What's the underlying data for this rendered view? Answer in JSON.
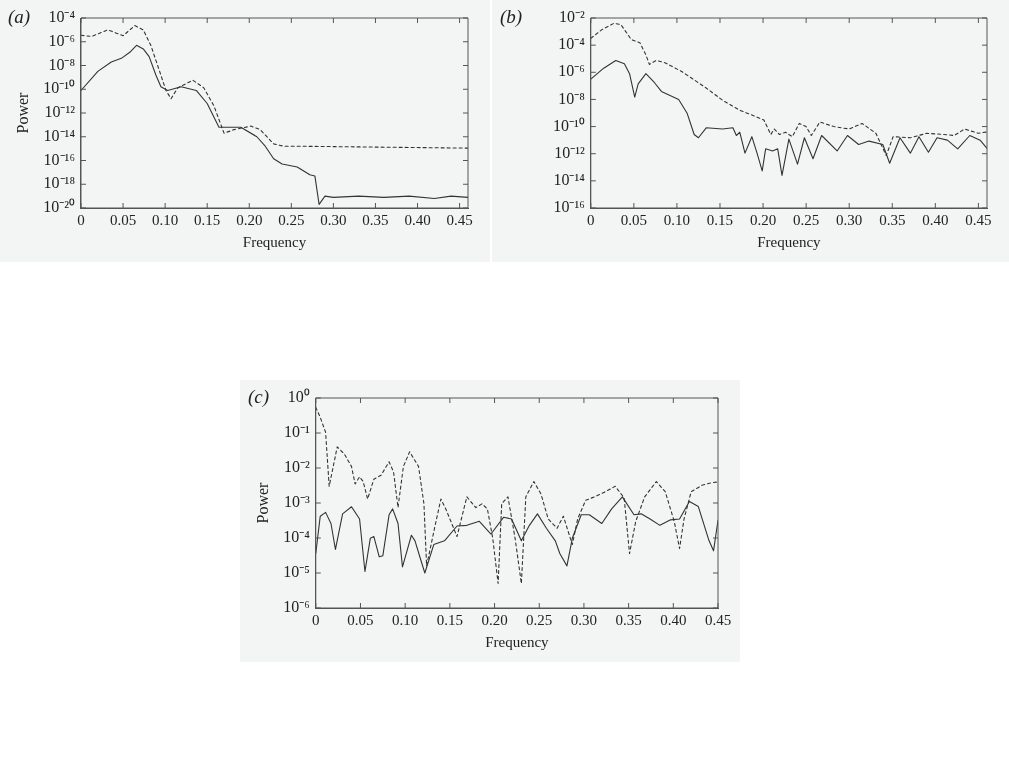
{
  "chart_data": [
    {
      "type": "line",
      "title": "(a)",
      "xlabel": "Frequency",
      "ylabel": "Power",
      "log": true,
      "xlim": [
        0,
        0.46
      ],
      "xticks": [
        0,
        0.05,
        {
          "value": 0.1,
          "label": "0.10"
        },
        0.15,
        {
          "value": 0.2,
          "label": "0.20"
        },
        0.25,
        {
          "value": 0.3,
          "label": "0.30"
        },
        0.35,
        {
          "value": 0.4,
          "label": "0.40"
        },
        0.45
      ],
      "ylim": [
        1e-20,
        0.0001
      ],
      "yticks": [
        {
          "value": 1e-20,
          "label": "10⁻²⁰"
        },
        {
          "value": 1e-18,
          "label": "10⁻¹⁸"
        },
        {
          "value": 1e-16,
          "label": "10⁻¹⁶"
        },
        {
          "value": 1e-14,
          "label": "10⁻¹⁴"
        },
        {
          "value": 1e-12,
          "label": "10⁻¹²"
        },
        {
          "value": 1e-10,
          "label": "10⁻¹⁰"
        },
        {
          "value": 1e-08,
          "label": "10⁻⁸"
        },
        {
          "value": 1e-06,
          "label": "10⁻⁶"
        },
        {
          "value": 0.0001,
          "label": "10⁻⁴"
        }
      ],
      "marker": "none",
      "series": [
        {
          "color": "#333333",
          "line_style": "solid",
          "x": [
            0,
            0.02,
            0.036,
            0.048,
            0.058,
            0.066,
            0.074,
            0.081,
            0.089,
            0.095,
            0.103,
            0.119,
            0.137,
            0.15,
            0.164,
            0.19,
            0.209,
            0.219,
            0.229,
            0.239,
            0.257,
            0.272,
            0.278,
            0.283,
            0.29,
            0.3,
            0.33,
            0.36,
            0.39,
            0.42,
            0.44,
            0.46
          ],
          "values": [
            7.9e-11,
            3.2e-09,
            2e-08,
            4e-08,
            1.3e-07,
            5e-07,
            2.5e-07,
            5.6e-08,
            1.6e-09,
            1.6e-10,
            7.9e-11,
            1.6e-10,
            7.9e-11,
            6.3e-12,
            6.3e-14,
            6.3e-14,
            1e-14,
            1.6e-15,
            1.4e-16,
            5e-17,
            2.8e-17,
            6.3e-18,
            5e-18,
            2e-20,
            1e-19,
            7.9e-20,
            1e-19,
            7.9e-20,
            1e-19,
            6.3e-20,
            1e-19,
            7.9e-20
          ]
        },
        {
          "color": "#333333",
          "line_style": "dashed",
          "x": [
            0,
            0.0126,
            0.032,
            0.05,
            0.064,
            0.074,
            0.083,
            0.093,
            0.101,
            0.107,
            0.115,
            0.133,
            0.146,
            0.158,
            0.17,
            0.182,
            0.202,
            0.213,
            0.229,
            0.241,
            0.257,
            0.46
          ],
          "values": [
            3.5e-06,
            2.8e-06,
            1e-05,
            3.2e-06,
            2.3e-05,
            1e-05,
            5e-07,
            4e-09,
            7.9e-11,
            1.6e-11,
            1.3e-10,
            5.8e-10,
            1.3e-10,
            4e-12,
            2e-14,
            4e-14,
            7.9e-14,
            4e-14,
            2.5e-15,
            1.6e-15,
            1.6e-15,
            1.1e-15
          ]
        }
      ]
    },
    {
      "type": "line",
      "title": "(b)",
      "xlabel": "Frequency",
      "log": true,
      "xlim": [
        0,
        0.46
      ],
      "xticks": [
        0,
        0.05,
        {
          "value": 0.1,
          "label": "0.10"
        },
        0.15,
        {
          "value": 0.2,
          "label": "0.20"
        },
        0.25,
        {
          "value": 0.3,
          "label": "0.30"
        },
        0.35,
        {
          "value": 0.4,
          "label": "0.40"
        },
        0.45
      ],
      "ylim": [
        1e-16,
        0.01
      ],
      "yticks": [
        {
          "value": 1e-16,
          "label": "10⁻¹⁶"
        },
        {
          "value": 1e-14,
          "label": "10⁻¹⁴"
        },
        {
          "value": 1e-12,
          "label": "10⁻¹²"
        },
        {
          "value": 1e-10,
          "label": "10⁻¹⁰"
        },
        {
          "value": 1e-08,
          "label": "10⁻⁸"
        },
        {
          "value": 1e-06,
          "label": "10⁻⁶"
        },
        {
          "value": 0.0001,
          "label": "10⁻⁴"
        },
        {
          "value": 0.01,
          "label": "10⁻²"
        }
      ],
      "marker": "none",
      "series": [
        {
          "color": "#333333",
          "line_style": "solid",
          "x": [
            0,
            0.015,
            0.029,
            0.039,
            0.045,
            0.051,
            0.055,
            0.064,
            0.074,
            0.082,
            0.102,
            0.112,
            0.12,
            0.125,
            0.134,
            0.153,
            0.165,
            0.169,
            0.173,
            0.179,
            0.187,
            0.193,
            0.199,
            0.203,
            0.211,
            0.217,
            0.222,
            0.23,
            0.24,
            0.248,
            0.258,
            0.268,
            0.286,
            0.298,
            0.311,
            0.323,
            0.339,
            0.347,
            0.359,
            0.371,
            0.381,
            0.392,
            0.402,
            0.414,
            0.426,
            0.44,
            0.452,
            0.46
          ],
          "values": [
            3.1e-07,
            2e-06,
            7.4e-06,
            4.3e-06,
            7.9e-07,
            1.5e-08,
            1.4e-07,
            7.9e-07,
            1.7e-07,
            3.9e-08,
            1e-08,
            9.1e-10,
            2.6e-11,
            1.5e-11,
            8.1e-11,
            6.6e-11,
            8.1e-11,
            2.2e-11,
            3.8e-11,
            1.1e-12,
            1.8e-11,
            1.1e-12,
            5.4e-14,
            2.3e-12,
            1.6e-12,
            2.3e-12,
            2.5e-14,
            1.2e-11,
            1.7e-13,
            1.5e-11,
            4.3e-13,
            2.2e-11,
            1.6e-12,
            2.2e-11,
            4.8e-12,
            8.5e-12,
            4.8e-12,
            2e-13,
            1.5e-11,
            1.1e-12,
            1.8e-11,
            1.3e-12,
            1.5e-11,
            1e-11,
            2.3e-12,
            2.2e-11,
            1e-11,
            2.5e-12
          ]
        },
        {
          "color": "#333333",
          "line_style": "dashed",
          "x": [
            0,
            0.013,
            0.027,
            0.035,
            0.047,
            0.057,
            0.064,
            0.068,
            0.076,
            0.086,
            0.106,
            0.134,
            0.153,
            0.173,
            0.189,
            0.201,
            0.209,
            0.213,
            0.219,
            0.226,
            0.234,
            0.242,
            0.25,
            0.256,
            0.266,
            0.282,
            0.3,
            0.315,
            0.331,
            0.343,
            0.351,
            0.371,
            0.39,
            0.41,
            0.422,
            0.434,
            0.45,
            0.46
          ],
          "values": [
            0.00032,
            0.0014,
            0.0041,
            0.0032,
            0.00026,
            0.00015,
            1.9e-05,
            3.8e-06,
            7.4e-06,
            5.1e-06,
            1.1e-06,
            6.9e-08,
            8.7e-09,
            1.6e-09,
            6.3e-10,
            3e-10,
            2.6e-11,
            6.6e-11,
            2.6e-11,
            3.8e-11,
            1.8e-11,
            1.7e-10,
            1e-10,
            2.2e-11,
            2.2e-10,
            1e-10,
            6.6e-11,
            1.7e-10,
            3.2e-11,
            7.4e-13,
            1.8e-11,
            1.5e-11,
            3.2e-11,
            2.6e-11,
            2.2e-11,
            6.6e-11,
            3.2e-11,
            4e-11
          ]
        }
      ]
    },
    {
      "type": "line",
      "title": "(c)",
      "xlabel": "Frequency",
      "ylabel": "Power",
      "log": true,
      "xlim": [
        0,
        0.45
      ],
      "xticks": [
        0,
        0.05,
        {
          "value": 0.1,
          "label": "0.10"
        },
        0.15,
        {
          "value": 0.2,
          "label": "0.20"
        },
        0.25,
        {
          "value": 0.3,
          "label": "0.30"
        },
        0.35,
        {
          "value": 0.4,
          "label": "0.40"
        },
        0.45
      ],
      "ylim": [
        1e-06,
        1
      ],
      "yticks": [
        {
          "value": 1e-06,
          "label": "10⁻⁶"
        },
        {
          "value": 1e-05,
          "label": "10⁻⁵"
        },
        {
          "value": 0.0001,
          "label": "10⁻⁴"
        },
        {
          "value": 0.001,
          "label": "10⁻³"
        },
        {
          "value": 0.01,
          "label": "10⁻²"
        },
        {
          "value": 0.1,
          "label": "10⁻¹"
        },
        {
          "value": 1,
          "label": "10⁰"
        }
      ],
      "marker": "none",
      "series": [
        {
          "color": "#333333",
          "line_style": "solid",
          "x": [
            0,
            0.005,
            0.011,
            0.017,
            0.022,
            0.03,
            0.04,
            0.049,
            0.055,
            0.061,
            0.065,
            0.071,
            0.075,
            0.082,
            0.086,
            0.092,
            0.097,
            0.107,
            0.111,
            0.117,
            0.122,
            0.132,
            0.144,
            0.158,
            0.169,
            0.183,
            0.196,
            0.21,
            0.219,
            0.23,
            0.239,
            0.248,
            0.258,
            0.268,
            0.273,
            0.281,
            0.287,
            0.297,
            0.306,
            0.32,
            0.331,
            0.343,
            0.356,
            0.364,
            0.374,
            0.385,
            0.397,
            0.407,
            0.418,
            0.428,
            0.44,
            0.445,
            0.45
          ],
          "values": [
            3.6e-05,
            0.00042,
            0.00054,
            0.00026,
            4.7e-05,
            0.00049,
            0.00078,
            0.00035,
            1.1e-05,
            9.8e-05,
            0.00011,
            2.9e-05,
            3.1e-05,
            0.00046,
            0.00068,
            0.00026,
            1.5e-05,
            0.00012,
            8.3e-05,
            2.6e-05,
            1e-05,
            6.5e-05,
            8.3e-05,
            0.00022,
            0.00023,
            0.0003,
            0.00013,
            0.00039,
            0.00035,
            8.3e-05,
            0.00023,
            0.00049,
            0.00019,
            8.3e-05,
            3.6e-05,
            1.6e-05,
            9.8e-05,
            0.00046,
            0.00046,
            0.00026,
            0.00068,
            0.0015,
            0.00046,
            0.00049,
            0.00035,
            0.00023,
            0.00033,
            0.00035,
            0.0011,
            0.00079,
            8.3e-05,
            4.3e-05,
            0.00032
          ]
        },
        {
          "color": "#333333",
          "line_style": "dashed",
          "x": [
            0,
            0.005,
            0.011,
            0.015,
            0.024,
            0.032,
            0.04,
            0.044,
            0.049,
            0.053,
            0.058,
            0.065,
            0.073,
            0.082,
            0.087,
            0.092,
            0.098,
            0.105,
            0.115,
            0.121,
            0.124,
            0.134,
            0.14,
            0.146,
            0.158,
            0.169,
            0.179,
            0.186,
            0.192,
            0.198,
            0.204,
            0.208,
            0.215,
            0.223,
            0.23,
            0.235,
            0.244,
            0.252,
            0.26,
            0.27,
            0.277,
            0.287,
            0.293,
            0.302,
            0.312,
            0.324,
            0.335,
            0.345,
            0.351,
            0.358,
            0.368,
            0.381,
            0.391,
            0.401,
            0.407,
            0.412,
            0.42,
            0.432,
            0.443,
            0.45
          ],
          "values": [
            0.54,
            0.28,
            0.105,
            0.003,
            0.04,
            0.025,
            0.011,
            0.0035,
            0.0056,
            0.0041,
            0.0013,
            0.0048,
            0.0062,
            0.015,
            0.0078,
            0.00074,
            0.011,
            0.029,
            0.011,
            0.00095,
            1.6e-05,
            0.00026,
            0.0013,
            0.00063,
            0.00011,
            0.0015,
            0.00074,
            0.00095,
            0.00068,
            9.8e-05,
            5e-06,
            0.00095,
            0.0015,
            9.8e-05,
            5e-06,
            0.0015,
            0.0041,
            0.0018,
            0.00035,
            0.00019,
            0.00042,
            6.5e-05,
            0.00035,
            0.0012,
            0.0015,
            0.0021,
            0.003,
            0.0014,
            3.6e-05,
            0.0003,
            0.0015,
            0.0041,
            0.0021,
            0.0003,
            5e-05,
            0.00035,
            0.0021,
            0.0032,
            0.0038,
            0.004
          ]
        }
      ]
    }
  ]
}
